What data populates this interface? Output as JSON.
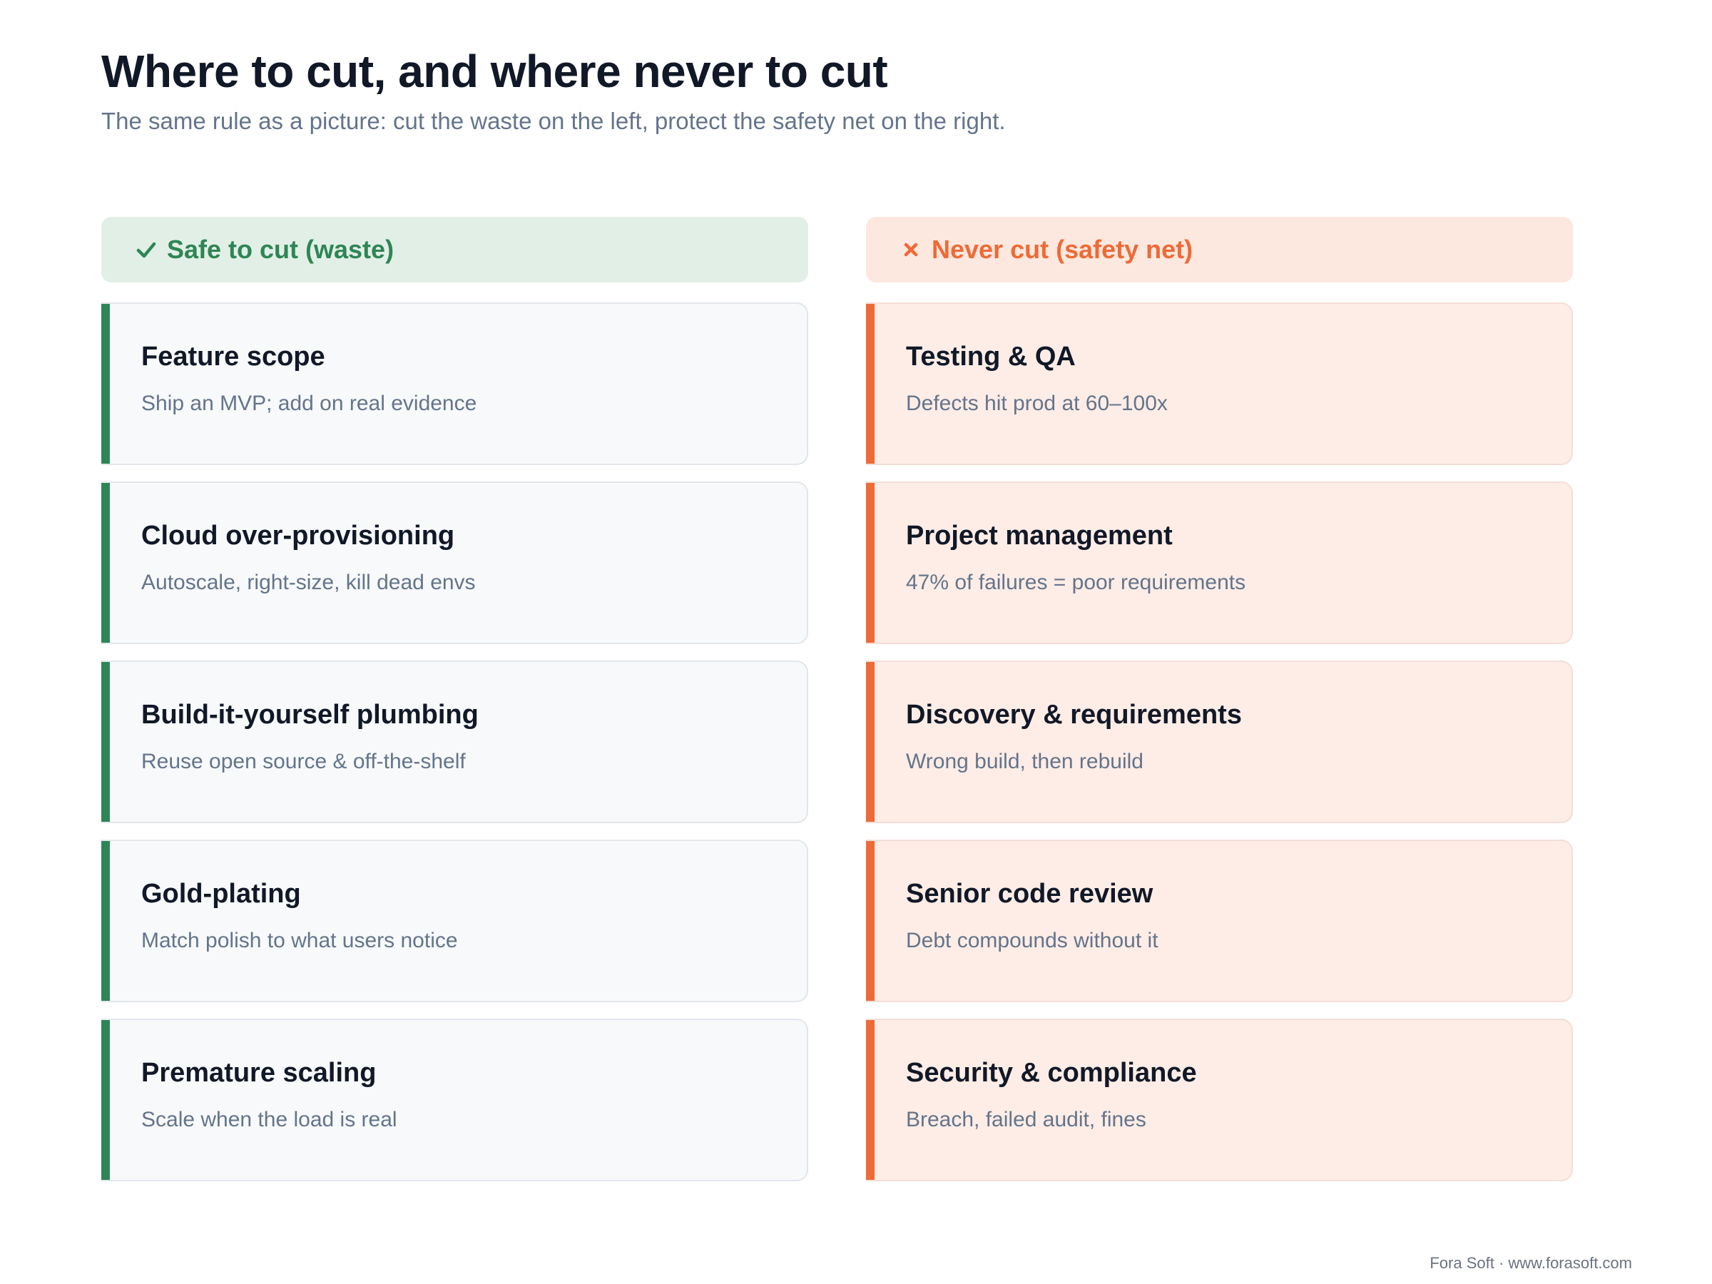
{
  "header": {
    "title": "Where to cut, and where never to cut",
    "subtitle": "The same rule as a picture: cut the waste on the left, protect the safety net on the right."
  },
  "left_column": {
    "icon": "check-icon",
    "color": "#2e8555",
    "label": "Safe to cut (waste)",
    "items": [
      {
        "title": "Feature scope",
        "desc": "Ship an MVP; add on real evidence"
      },
      {
        "title": "Cloud over-provisioning",
        "desc": "Autoscale, right-size, kill dead envs"
      },
      {
        "title": "Build-it-yourself plumbing",
        "desc": "Reuse open source & off-the-shelf"
      },
      {
        "title": "Gold-plating",
        "desc": "Match polish to what users notice"
      },
      {
        "title": "Premature scaling",
        "desc": "Scale when the load is real"
      }
    ]
  },
  "right_column": {
    "icon": "x-icon",
    "color": "#ee6a36",
    "label": "Never cut (safety net)",
    "items": [
      {
        "title": "Testing & QA",
        "desc": "Defects hit prod at 60–100x"
      },
      {
        "title": "Project management",
        "desc": "47% of failures = poor requirements"
      },
      {
        "title": "Discovery & requirements",
        "desc": "Wrong build, then rebuild"
      },
      {
        "title": "Senior code review",
        "desc": "Debt compounds without it"
      },
      {
        "title": "Security & compliance",
        "desc": "Breach, failed audit, fines"
      }
    ]
  },
  "footer": {
    "text": "Fora Soft · www.forasoft.com"
  }
}
